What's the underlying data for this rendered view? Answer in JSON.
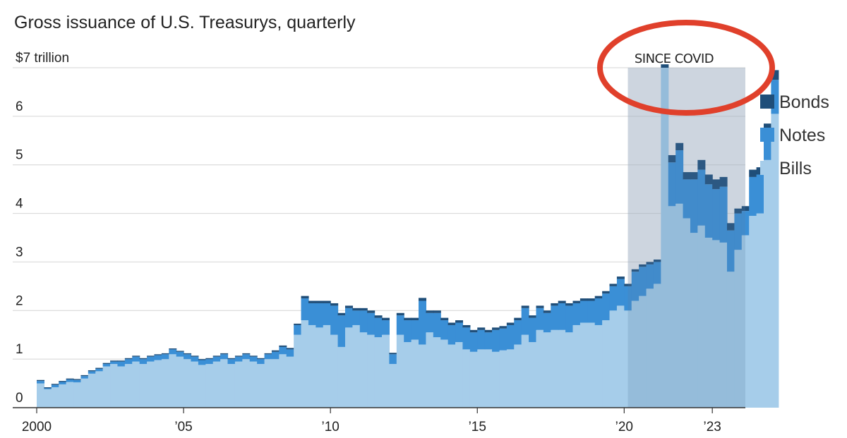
{
  "title": "Gross issuance of U.S. Treasurys, quarterly",
  "chart_data": {
    "type": "area",
    "stacked": true,
    "step": true,
    "title": "Gross issuance of U.S. Treasurys, quarterly",
    "ylim": [
      0,
      7
    ],
    "yticks": [
      0,
      1,
      2,
      3,
      4,
      5,
      6,
      7
    ],
    "ytick_labels": [
      "0",
      "1",
      "2",
      "3",
      "4",
      "5",
      "6",
      "$7 trillion"
    ],
    "xlim": [
      2000,
      2024.125
    ],
    "xticks": [
      2000,
      2005,
      2010,
      2015,
      2020,
      2023
    ],
    "xtick_labels": [
      "2000",
      "’05",
      "’10",
      "’15",
      "’20",
      "’23"
    ],
    "grid": "horizontal",
    "legend_position": "right",
    "colors": {
      "Bonds": "#1f4e79",
      "Notes": "#3a8fd6",
      "Bills": "#a6cdea",
      "highlight_band": "#ededf0",
      "shade": "#5b7fa6",
      "circle": "#e0402b"
    },
    "annotation": {
      "text": "SINCE COVID",
      "x_start": 2020.125,
      "x_end": 2024.125
    },
    "quarters_start": 2000.0,
    "series": [
      {
        "name": "Bills",
        "values": [
          0.5,
          0.38,
          0.42,
          0.48,
          0.53,
          0.52,
          0.6,
          0.7,
          0.75,
          0.85,
          0.9,
          0.85,
          0.9,
          0.95,
          0.9,
          0.95,
          0.98,
          1.0,
          1.1,
          1.05,
          1.0,
          0.95,
          0.88,
          0.9,
          0.95,
          1.0,
          0.9,
          0.95,
          1.0,
          0.95,
          0.9,
          1.0,
          1.0,
          1.1,
          1.05,
          1.5,
          1.8,
          1.7,
          1.65,
          1.7,
          1.5,
          1.25,
          1.65,
          1.7,
          1.55,
          1.5,
          1.45,
          1.5,
          0.9,
          1.5,
          1.35,
          1.4,
          1.3,
          1.55,
          1.45,
          1.4,
          1.3,
          1.35,
          1.2,
          1.15,
          1.2,
          1.2,
          1.15,
          1.18,
          1.2,
          1.3,
          1.5,
          1.35,
          1.6,
          1.55,
          1.6,
          1.6,
          1.55,
          1.7,
          1.75,
          1.75,
          1.7,
          1.8,
          2.0,
          2.1,
          2.0,
          2.2,
          2.3,
          2.45,
          2.55,
          7.0,
          4.15,
          4.2,
          3.9,
          3.6,
          3.75,
          3.5,
          3.45,
          3.4,
          2.8,
          3.25,
          3.55,
          3.95,
          4.0,
          5.1,
          6.05
        ]
      },
      {
        "name": "Notes",
        "values": [
          0.05,
          0.02,
          0.05,
          0.05,
          0.05,
          0.05,
          0.05,
          0.05,
          0.05,
          0.05,
          0.05,
          0.1,
          0.1,
          0.1,
          0.1,
          0.1,
          0.1,
          0.1,
          0.1,
          0.1,
          0.1,
          0.1,
          0.1,
          0.1,
          0.1,
          0.1,
          0.1,
          0.1,
          0.1,
          0.1,
          0.1,
          0.1,
          0.15,
          0.15,
          0.15,
          0.2,
          0.45,
          0.45,
          0.5,
          0.45,
          0.6,
          0.65,
          0.4,
          0.3,
          0.45,
          0.45,
          0.4,
          0.3,
          0.2,
          0.4,
          0.45,
          0.4,
          0.9,
          0.4,
          0.5,
          0.4,
          0.4,
          0.4,
          0.45,
          0.4,
          0.4,
          0.35,
          0.45,
          0.45,
          0.5,
          0.5,
          0.55,
          0.5,
          0.45,
          0.4,
          0.5,
          0.55,
          0.55,
          0.45,
          0.45,
          0.45,
          0.55,
          0.55,
          0.5,
          0.55,
          0.5,
          0.6,
          0.6,
          0.5,
          0.45,
          0.0,
          0.9,
          1.1,
          0.8,
          1.1,
          1.15,
          1.1,
          1.05,
          1.15,
          0.85,
          0.75,
          0.5,
          0.8,
          0.8,
          0.6,
          0.7
        ]
      },
      {
        "name": "Bonds",
        "values": [
          0.02,
          0.02,
          0.02,
          0.02,
          0.02,
          0.02,
          0.02,
          0.02,
          0.02,
          0.02,
          0.02,
          0.02,
          0.02,
          0.02,
          0.02,
          0.02,
          0.02,
          0.02,
          0.02,
          0.02,
          0.02,
          0.02,
          0.02,
          0.02,
          0.02,
          0.02,
          0.02,
          0.02,
          0.02,
          0.02,
          0.02,
          0.02,
          0.03,
          0.03,
          0.03,
          0.03,
          0.05,
          0.05,
          0.05,
          0.05,
          0.05,
          0.05,
          0.05,
          0.05,
          0.05,
          0.05,
          0.05,
          0.05,
          0.03,
          0.05,
          0.05,
          0.05,
          0.06,
          0.05,
          0.05,
          0.05,
          0.05,
          0.05,
          0.05,
          0.05,
          0.05,
          0.05,
          0.05,
          0.05,
          0.05,
          0.05,
          0.05,
          0.05,
          0.05,
          0.05,
          0.05,
          0.05,
          0.05,
          0.05,
          0.05,
          0.05,
          0.05,
          0.05,
          0.05,
          0.05,
          0.05,
          0.05,
          0.05,
          0.05,
          0.05,
          0.07,
          0.15,
          0.15,
          0.15,
          0.15,
          0.2,
          0.2,
          0.2,
          0.2,
          0.15,
          0.1,
          0.1,
          0.15,
          0.15,
          0.15,
          0.2
        ]
      }
    ]
  }
}
